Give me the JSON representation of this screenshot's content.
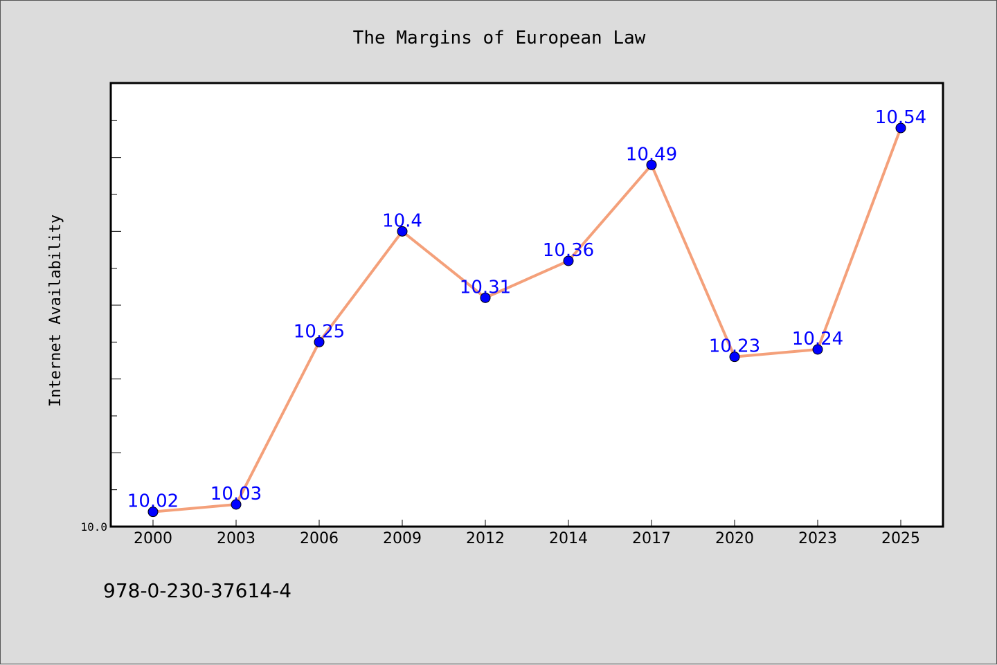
{
  "colors": {
    "background": "#dcdcdc",
    "plot_background": "#ffffff",
    "line": "#f4a07a",
    "marker": "#0000ff",
    "data_label": "#0000ff"
  },
  "footer": {
    "isbn": "978-0-230-37614-4"
  },
  "chart_data": {
    "type": "line",
    "title": "The Margins of European Law",
    "xlabel": "",
    "ylabel": "Internet Availability",
    "categories": [
      "2000",
      "2003",
      "2006",
      "2009",
      "2012",
      "2014",
      "2017",
      "2020",
      "2023",
      "2025"
    ],
    "series": [
      {
        "values": [
          10.02,
          10.03,
          10.25,
          10.4,
          10.31,
          10.36,
          10.49,
          10.23,
          10.24,
          10.54
        ],
        "labels": [
          "10.02",
          "10.03",
          "10.25",
          "10.4",
          "10.31",
          "10.36",
          "10.49",
          "10.23",
          "10.24",
          "10.54"
        ]
      }
    ],
    "ylim": [
      10.0,
      10.6
    ],
    "yticks": [
      {
        "value": 10.0,
        "label": "10.0"
      }
    ],
    "y_minor_step": 0.05,
    "grid": false,
    "legend": "none"
  }
}
